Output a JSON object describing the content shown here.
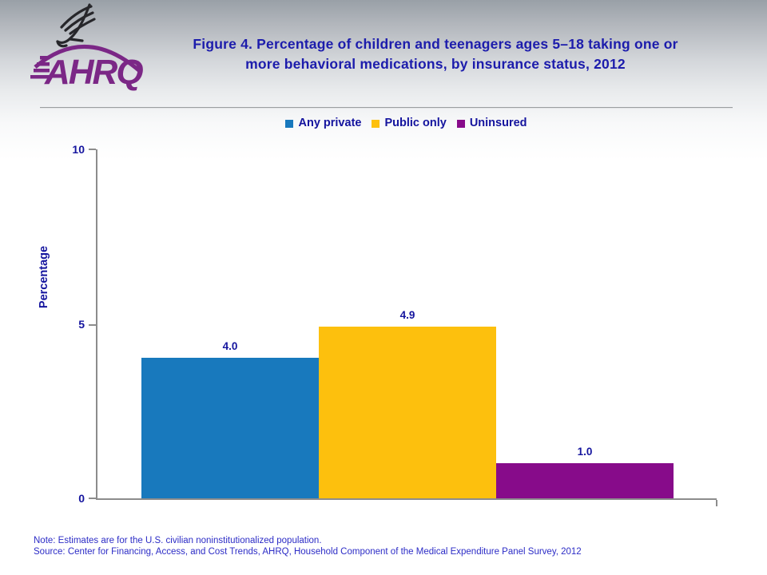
{
  "header": {
    "logo": {
      "text": "AHRQ",
      "color": "#7b2786"
    },
    "title_line1": "Figure 4. Percentage of children and teenagers ages 5–18 taking one or",
    "title_line2": "more behavioral medications, by insurance status, 2012"
  },
  "legend": {
    "items": [
      {
        "label": "Any private",
        "color": "#1879bd"
      },
      {
        "label": "Public only",
        "color": "#fdc00d"
      },
      {
        "label": "Uninsured",
        "color": "#870b8a"
      }
    ]
  },
  "chart_data": {
    "type": "bar",
    "title": "Figure 4. Percentage of children and teenagers ages 5–18 taking one or more behavioral medications, by insurance status, 2012",
    "categories": [
      "Any private",
      "Public only",
      "Uninsured"
    ],
    "values": [
      4.0,
      4.9,
      1.0
    ],
    "value_labels": [
      "4.0",
      "4.9",
      "1.0"
    ],
    "colors": [
      "#1879bd",
      "#fdc00d",
      "#870b8a"
    ],
    "xlabel": "",
    "ylabel": "Percentage",
    "ylim": [
      0,
      10
    ],
    "yticks": [
      "0",
      "5",
      "10"
    ],
    "grid": false,
    "legend_position": "top"
  },
  "notes": {
    "note": "Note: Estimates are for the U.S. civilian noninstitutionalized population.",
    "source": "Source: Center for Financing, Access, and Cost Trends, AHRQ, Household Component of the Medical Expenditure Panel Survey, 2012"
  }
}
